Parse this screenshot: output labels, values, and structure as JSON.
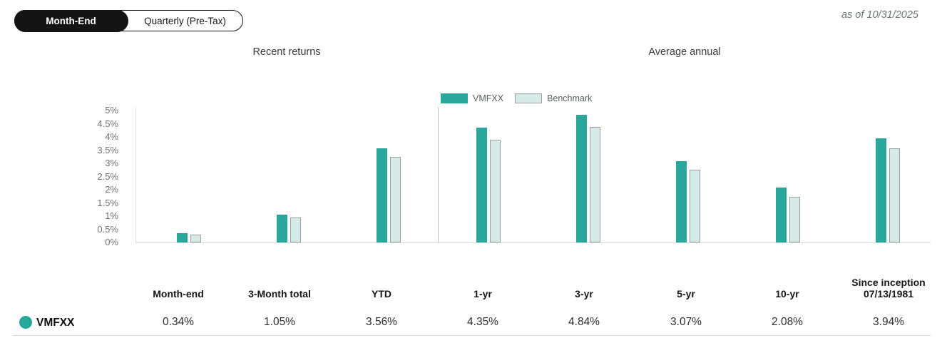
{
  "toggle": {
    "month_end": "Month-End",
    "quarterly": "Quarterly (Pre-Tax)"
  },
  "as_of": "as of 10/31/2025",
  "sections": {
    "recent": "Recent returns",
    "average": "Average annual"
  },
  "colors": {
    "vmfxx": "#2aa79d",
    "benchmark_fill": "#d6eae8",
    "benchmark_border": "#98a2a2",
    "selected_toggle": "#141414"
  },
  "chart_data": {
    "type": "bar",
    "categories": [
      "Month-end",
      "3-Month total",
      "YTD",
      "1-yr",
      "3-yr",
      "5-yr",
      "10-yr",
      "Since inception 07/13/1981"
    ],
    "series": [
      {
        "name": "VMFXX",
        "values": [
          0.34,
          1.05,
          3.56,
          4.35,
          4.84,
          3.07,
          2.08,
          3.94
        ]
      },
      {
        "name": "Benchmark",
        "values": [
          0.3,
          0.94,
          3.23,
          3.9,
          4.37,
          2.75,
          1.72,
          3.56
        ]
      }
    ],
    "title_left_section": "Recent returns",
    "title_right_section": "Average annual",
    "xlabel": "",
    "ylabel": "",
    "ylim": [
      0,
      5
    ],
    "yticks": [
      "0%",
      "0.5%",
      "1%",
      "1.5%",
      "2%",
      "2.5%",
      "3%",
      "3.5%",
      "4%",
      "4.5%",
      "5%"
    ],
    "grid": false,
    "legend_position": "top-center",
    "section_split": {
      "recent_returns": [
        0,
        1,
        2
      ],
      "average_annual": [
        3,
        4,
        5,
        6,
        7
      ]
    }
  },
  "table": {
    "row_label": "VMFXX",
    "columns": [
      {
        "label": "Month-end",
        "value": "0.34%"
      },
      {
        "label": "3-Month total",
        "value": "1.05%"
      },
      {
        "label": "YTD",
        "value": "3.56%"
      },
      {
        "label": "1-yr",
        "value": "4.35%"
      },
      {
        "label": "3-yr",
        "value": "4.84%"
      },
      {
        "label": "5-yr",
        "value": "3.07%"
      },
      {
        "label": "10-yr",
        "value": "2.08%"
      },
      {
        "label": "Since inception",
        "label2": "07/13/1981",
        "value": "3.94%"
      }
    ]
  }
}
